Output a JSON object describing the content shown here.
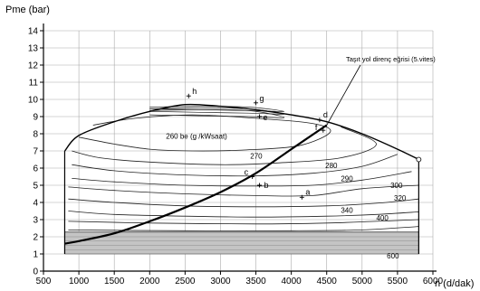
{
  "chart_data": {
    "type": "line",
    "title": "",
    "xlabel": "n (d/dak)",
    "ylabel": "Pme (bar)",
    "xlim": [
      500,
      6000
    ],
    "ylim": [
      0,
      14
    ],
    "x_ticks": [
      500,
      1000,
      1500,
      2000,
      2500,
      3000,
      3500,
      4000,
      4500,
      5000,
      5500,
      6000
    ],
    "y_ticks": [
      0,
      1,
      2,
      3,
      4,
      5,
      6,
      7,
      8,
      9,
      10,
      11,
      12,
      13,
      14
    ],
    "grid": true,
    "full_load_curve": {
      "x": [
        800,
        1000,
        1500,
        2000,
        2500,
        3000,
        3500,
        4000,
        4500,
        5000,
        5500,
        5800
      ],
      "y": [
        7.0,
        7.9,
        8.7,
        9.3,
        9.7,
        9.6,
        9.4,
        9.1,
        8.7,
        8.0,
        7.1,
        6.5
      ]
    },
    "road_load_curve": {
      "name": "Taşıt yol direnç eğrisi (5.vites)",
      "x": [
        800,
        1000,
        1500,
        2000,
        2500,
        3000,
        3500,
        4000,
        4500
      ],
      "y": [
        1.6,
        1.75,
        2.2,
        2.9,
        3.7,
        4.6,
        5.7,
        7.1,
        8.5
      ]
    },
    "shaded_band": {
      "x_range": [
        800,
        5800
      ],
      "y_range": [
        1.0,
        2.3
      ]
    },
    "isolines": [
      {
        "label": "260 be (g /kWsaat)",
        "value": 260
      },
      {
        "label": "270",
        "value": 270
      },
      {
        "label": "280",
        "value": 280
      },
      {
        "label": "290",
        "value": 290
      },
      {
        "label": "300",
        "value": 300
      },
      {
        "label": "320",
        "value": 320
      },
      {
        "label": "340",
        "value": 340
      },
      {
        "label": "400",
        "value": 400
      },
      {
        "label": "600",
        "value": 600
      }
    ],
    "points": [
      {
        "label": "a",
        "x": 4150,
        "y": 4.3
      },
      {
        "label": "b",
        "x": 3550,
        "y": 5.0
      },
      {
        "label": "c",
        "x": 3450,
        "y": 5.5
      },
      {
        "label": "d",
        "x": 4400,
        "y": 8.8
      },
      {
        "label": "e",
        "x": 3550,
        "y": 9.0
      },
      {
        "label": "f",
        "x": 4450,
        "y": 8.2
      },
      {
        "label": "g",
        "x": 3500,
        "y": 9.8
      },
      {
        "label": "h",
        "x": 2550,
        "y": 10.2
      }
    ],
    "annotation": "Taşıt yol direnç eğrisi (5.vites)"
  }
}
